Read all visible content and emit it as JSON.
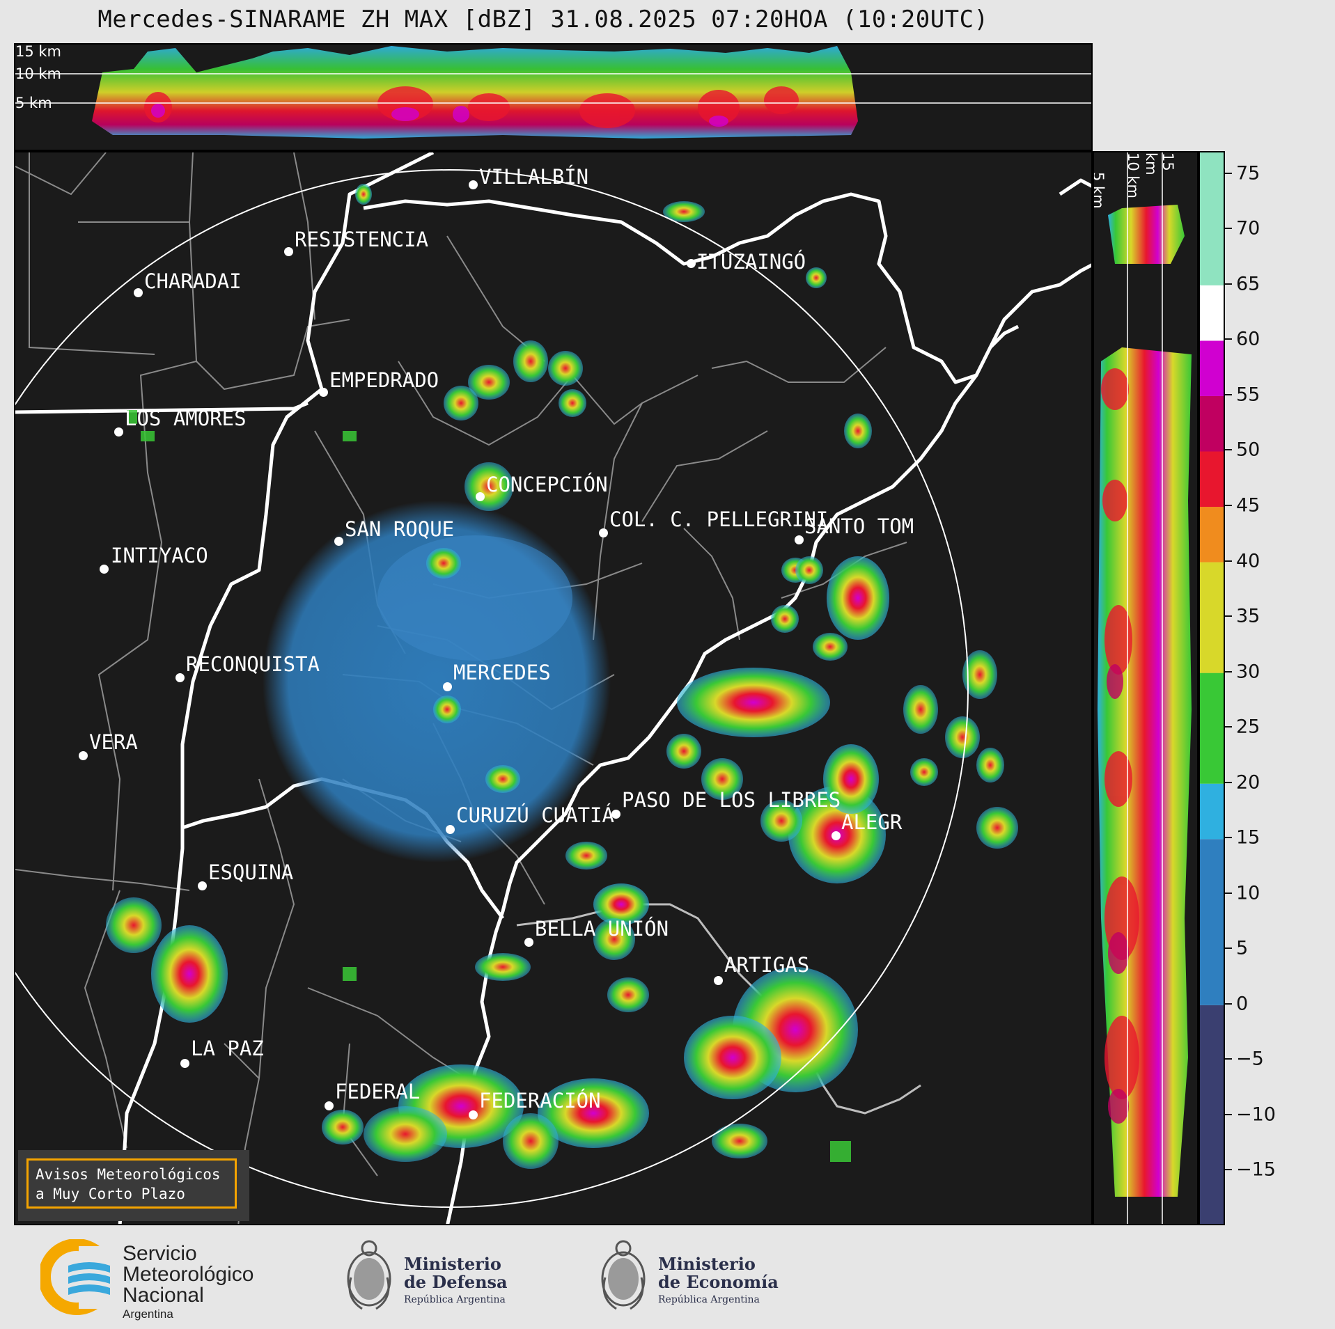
{
  "title": "Mercedes-SINARAME ZH MAX [dBZ] 31.08.2025 07:20HOA (10:20UTC)",
  "cross_section_top": {
    "height_labels": [
      "15 km",
      "10 km",
      "5 km"
    ]
  },
  "cross_section_right": {
    "height_labels": [
      "5 km",
      "10 km",
      "15 km"
    ]
  },
  "colorbar": {
    "unit": "dBZ",
    "ticks": [
      "75",
      "70",
      "65",
      "60",
      "55",
      "50",
      "45",
      "40",
      "35",
      "30",
      "25",
      "20",
      "15",
      "10",
      "5",
      "0",
      "−5",
      "−10",
      "−15"
    ],
    "range": [
      -20,
      77
    ],
    "colors": {
      "lt0": "#3a3f70",
      "0_15": "#2f7fbf",
      "15_20": "#2fb0e0",
      "20_30": "#39c836",
      "30_40": "#d8d82a",
      "40_45": "#f08c1e",
      "45_50": "#e8162e",
      "50_55": "#c00060",
      "55_60": "#d000d0",
      "60_65": "#ffffff",
      "65_77": "#8fe3c0"
    }
  },
  "map": {
    "radar_site": "MERCEDES",
    "cities": [
      "VILLALBÍN",
      "RESISTENCIA",
      "CHARADAI",
      "ITUZAINGÓ",
      "EMPEDRADO",
      "LOS AMORES",
      "CONCEPCIÓN",
      "SAN ROQUE",
      "COL. C. PELLEGRINI",
      "SANTO TOM",
      "INTIYACO",
      "MERCEDES",
      "RECONQUISTA",
      "VERA",
      "CURUZÚ CUATIÁ",
      "PASO DE LOS LIBRES",
      "ALEGR",
      "ESQUINA",
      "BELLA UNIÓN",
      "ARTIGAS",
      "LA PAZ",
      "FEDERAL",
      "FEDERACIÓN"
    ]
  },
  "warning_box": {
    "line1": "Avisos Meteorológicos",
    "line2": "a Muy Corto Plazo"
  },
  "footer": {
    "smn": {
      "line1": "Servicio",
      "line2": "Meteorológico",
      "line3": "Nacional",
      "sub": "Argentina"
    },
    "defensa": {
      "line1": "Ministerio",
      "line2": "de Defensa",
      "sub": "República Argentina"
    },
    "economia": {
      "line1": "Ministerio",
      "line2": "de Economía",
      "sub": "República Argentina"
    }
  }
}
